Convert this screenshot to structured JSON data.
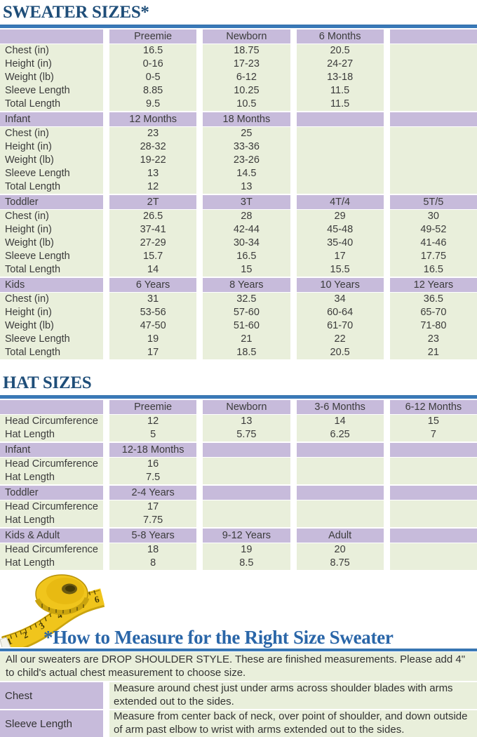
{
  "colors": {
    "title_blue": "#1f4e79",
    "heading_blue": "#2a66a8",
    "rule_blue": "#3a79b8",
    "row_purple": "#c7bbdb",
    "row_green": "#e9efdb",
    "tape_yellow": "#f0c51c"
  },
  "sweater": {
    "title": "SWEATER SIZES*",
    "sections": [
      {
        "header": [
          "",
          "Preemie",
          "Newborn",
          "6 Months",
          ""
        ],
        "rows": [
          [
            "Chest (in)",
            "16.5",
            "18.75",
            "20.5",
            ""
          ],
          [
            "Height (in)",
            "0-16",
            "17-23",
            "24-27",
            ""
          ],
          [
            "Weight (lb)",
            "0-5",
            "6-12",
            "13-18",
            ""
          ],
          [
            "Sleeve Length",
            "8.85",
            "10.25",
            "11.5",
            ""
          ],
          [
            "Total Length",
            "9.5",
            "10.5",
            "11.5",
            ""
          ]
        ]
      },
      {
        "header": [
          "Infant",
          "12 Months",
          "18 Months",
          "",
          ""
        ],
        "rows": [
          [
            "Chest (in)",
            "23",
            "25",
            "",
            ""
          ],
          [
            "Height (in)",
            "28-32",
            "33-36",
            "",
            ""
          ],
          [
            "Weight (lb)",
            "19-22",
            "23-26",
            "",
            ""
          ],
          [
            "Sleeve Length",
            "13",
            "14.5",
            "",
            ""
          ],
          [
            "Total Length",
            "12",
            "13",
            "",
            ""
          ]
        ]
      },
      {
        "header": [
          "Toddler",
          "2T",
          "3T",
          "4T/4",
          "5T/5"
        ],
        "rows": [
          [
            "Chest (in)",
            "26.5",
            "28",
            "29",
            "30"
          ],
          [
            "Height (in)",
            "37-41",
            "42-44",
            "45-48",
            "49-52"
          ],
          [
            "Weight (lb)",
            "27-29",
            "30-34",
            "35-40",
            "41-46"
          ],
          [
            "Sleeve Length",
            "15.7",
            "16.5",
            "17",
            "17.75"
          ],
          [
            "Total Length",
            "14",
            "15",
            "15.5",
            "16.5"
          ]
        ]
      },
      {
        "header": [
          "Kids",
          "6 Years",
          "8 Years",
          "10 Years",
          "12 Years"
        ],
        "rows": [
          [
            "Chest (in)",
            "31",
            "32.5",
            "34",
            "36.5"
          ],
          [
            "Height (in)",
            "53-56",
            "57-60",
            "60-64",
            "65-70"
          ],
          [
            "Weight (lb)",
            "47-50",
            "51-60",
            "61-70",
            "71-80"
          ],
          [
            "Sleeve Length",
            "19",
            "21",
            "22",
            "23"
          ],
          [
            "Total Length",
            "17",
            "18.5",
            "20.5",
            "21"
          ]
        ]
      }
    ]
  },
  "hat": {
    "title": "HAT SIZES",
    "sections": [
      {
        "header": [
          "",
          "Preemie",
          "Newborn",
          "3-6 Months",
          "6-12 Months"
        ],
        "rows": [
          [
            "Head Circumference",
            "12",
            "13",
            "14",
            "15"
          ],
          [
            "Hat Length",
            "5",
            "5.75",
            "6.25",
            "7"
          ]
        ]
      },
      {
        "header": [
          "Infant",
          "12-18 Months",
          "",
          "",
          ""
        ],
        "rows": [
          [
            "Head Circumference",
            "16",
            "",
            "",
            ""
          ],
          [
            "Hat Length",
            "7.5",
            "",
            "",
            ""
          ]
        ]
      },
      {
        "header": [
          "Toddler",
          "2-4 Years",
          "",
          "",
          ""
        ],
        "rows": [
          [
            "Head Circumference",
            "17",
            "",
            "",
            ""
          ],
          [
            "Hat Length",
            "7.75",
            "",
            "",
            ""
          ]
        ]
      },
      {
        "header": [
          "Kids & Adult",
          "5-8 Years",
          "9-12 Years",
          "Adult",
          ""
        ],
        "rows": [
          [
            "Head Circumference",
            "18",
            "19",
            "20",
            ""
          ],
          [
            "Hat Length",
            "8",
            "8.5",
            "8.75",
            ""
          ]
        ]
      }
    ]
  },
  "measure": {
    "heading": "*How to Measure for the Right Size Sweater",
    "intro": "All our sweaters are DROP SHOULDER STYLE.  These are finished measurements.  Please add 4\" to child's actual chest measurement to choose size.",
    "tape_numbers": [
      "1",
      "2",
      "3",
      "4",
      "5",
      "6"
    ],
    "rows": [
      {
        "label": "Chest",
        "text": "Measure around chest just under arms across shoulder blades with arms extended out to the sides."
      },
      {
        "label": "Sleeve Length",
        "text": "Measure from center back of neck, over point of shoulder, and down outside of arm past elbow to wrist with arms extended out to the sides."
      }
    ]
  }
}
